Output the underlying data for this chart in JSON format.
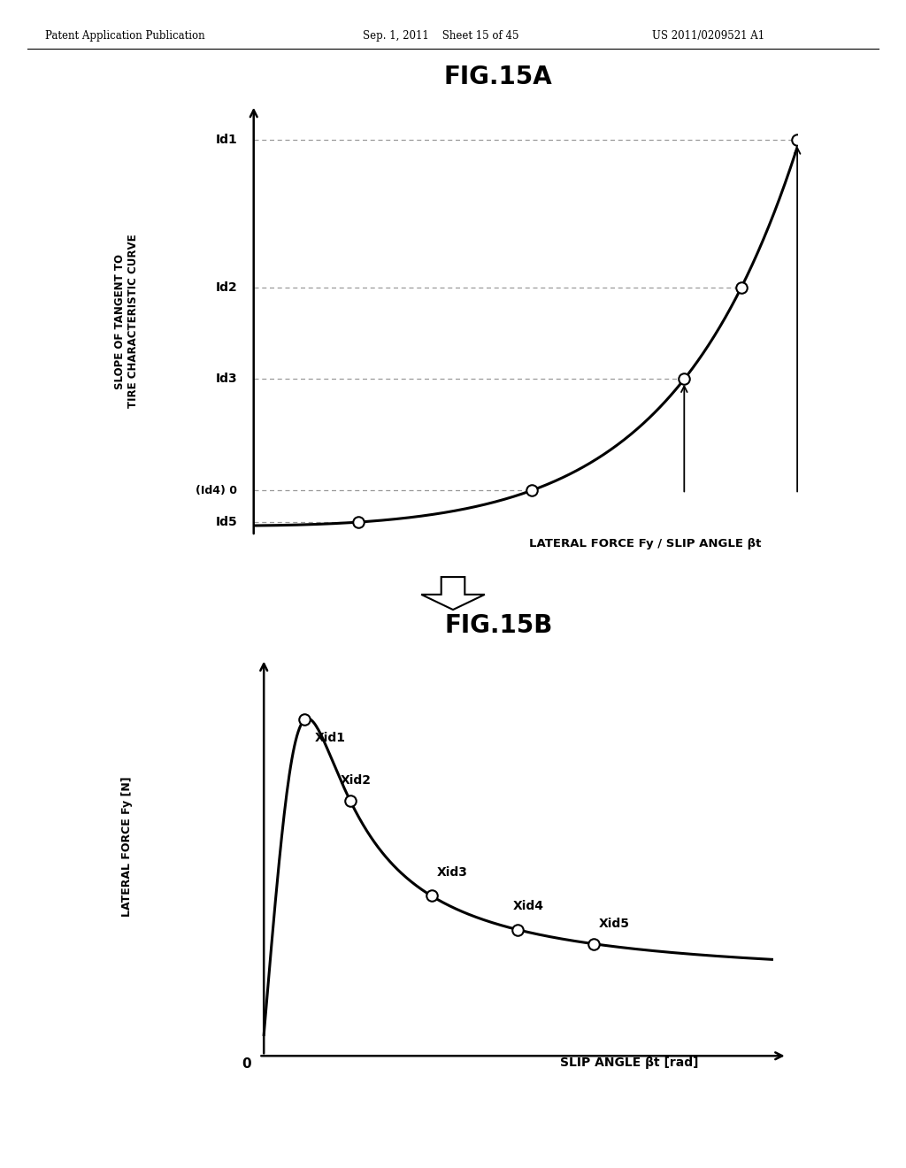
{
  "header_left": "Patent Application Publication",
  "header_mid": "Sep. 1, 2011    Sheet 15 of 45",
  "header_right": "US 2011/0209521 A1",
  "fig15a_title": "FIG.15A",
  "fig15b_title": "FIG.15B",
  "fig15a_ylabel": "SLOPE OF TANGENT TO\nTIRE CHARACTERISTIC CURVE",
  "fig15a_xlabel": "LATERAL FORCE Fy / SLIP ANGLE βt",
  "fig15b_ylabel": "LATERAL FORCE Fy [N]",
  "fig15b_xlabel": "SLIP ANGLE βt [rad]",
  "background_color": "#ffffff",
  "line_color": "#000000",
  "dashed_color": "#999999"
}
